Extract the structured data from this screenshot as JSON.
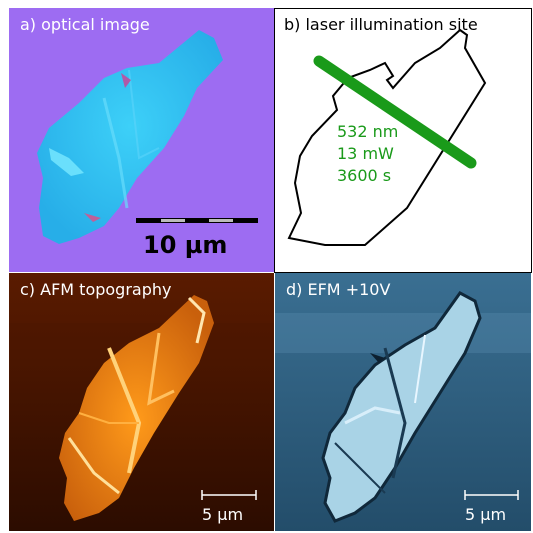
{
  "panels": {
    "a": {
      "label": "a) optical image",
      "scale_bar_label": "10 µm"
    },
    "b": {
      "label": "b) laser illumination site",
      "laser": {
        "wavelength": "532 nm",
        "power": "13 mW",
        "duration": "3600 s"
      }
    },
    "c": {
      "label": "c) AFM topography",
      "scale_bar_label": "5 µm"
    },
    "d": {
      "label": "d) EFM +10V",
      "scale_bar_label": "5 µm"
    }
  },
  "colors": {
    "optical_background": "#9d6cf2",
    "flake_cyan": "#2fc2f5",
    "laser_line": "#1a9a1a",
    "afm_background": "#3b1100",
    "afm_flake": "#e07a12",
    "efm_background": "#2f5f80",
    "efm_flake": "#a9d3e6"
  }
}
